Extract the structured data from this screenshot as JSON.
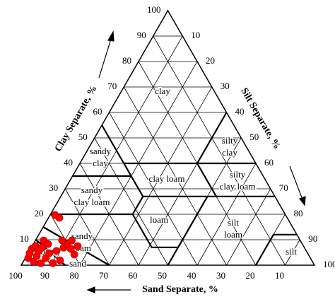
{
  "chart_data": {
    "type": "ternary",
    "axes": {
      "clay": {
        "label": "Clay Separate, %",
        "ticks": [
          10,
          20,
          30,
          40,
          50,
          60,
          70,
          80,
          90,
          100
        ]
      },
      "silt": {
        "label": "Silt Separate, %",
        "ticks": [
          10,
          20,
          30,
          40,
          50,
          60,
          70,
          80,
          90,
          100
        ]
      },
      "sand": {
        "label": "Sand Separate, %",
        "ticks": [
          100,
          90,
          80,
          70,
          60,
          50,
          40,
          30,
          20,
          10
        ]
      }
    },
    "grid": true,
    "classes": [
      {
        "lines": [
          "clay"
        ]
      },
      {
        "lines": [
          "silty",
          "clay"
        ]
      },
      {
        "lines": [
          "sandy",
          "clay"
        ]
      },
      {
        "lines": [
          "clay loam"
        ]
      },
      {
        "lines": [
          "silty",
          "clay loam"
        ]
      },
      {
        "lines": [
          "sandy",
          "clay loam"
        ]
      },
      {
        "lines": [
          "loam"
        ]
      },
      {
        "lines": [
          "silt",
          "loam"
        ]
      },
      {
        "lines": [
          "sandy",
          "loam"
        ]
      },
      {
        "lines": [
          "loamy",
          "sand"
        ]
      },
      {
        "lines": [
          "silt"
        ]
      }
    ],
    "series": [
      {
        "color": "#ff0000",
        "clay": [
          19.7,
          18.6,
          6.4,
          7.5,
          5.6,
          6.9,
          2.8,
          1.4,
          2.8,
          4.7,
          5.6,
          6.9,
          8.3,
          6.4,
          4.2,
          1.9,
          0.8,
          0.8,
          3.6,
          4.7,
          9.7,
          8.3,
          7.5,
          9.7,
          9.7
        ],
        "silt": [
          1.7,
          3.7,
          0.4,
          1.1,
          3.2,
          3.7,
          1.0,
          3.6,
          7.0,
          7.2,
          9.2,
          11.0,
          11.5,
          13.7,
          16.0,
          12.3,
          10.4,
          6.3,
          3.5,
          0.5,
          2.8,
          5.0,
          15.5,
          12.4,
          9.1
        ]
      }
    ]
  }
}
